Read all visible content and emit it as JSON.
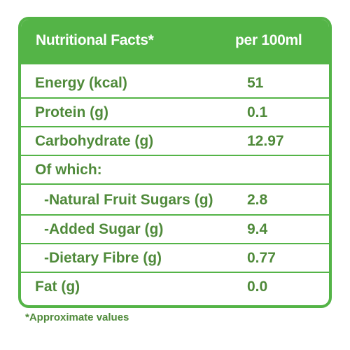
{
  "header": {
    "title": "Nutritional Facts*",
    "per": "per 100ml"
  },
  "rows": [
    {
      "label": "Energy (kcal)",
      "value": "51"
    },
    {
      "label": "Protein (g)",
      "value": "0.1"
    },
    {
      "label": "Carbohydrate (g)",
      "value": "12.97"
    },
    {
      "label": "Of which:",
      "value": ""
    },
    {
      "label": "-Natural Fruit Sugars (g)",
      "value": "2.8"
    },
    {
      "label": "-Added Sugar (g)",
      "value": "9.4"
    },
    {
      "label": "-Dietary Fibre (g)",
      "value": "0.77"
    },
    {
      "label": "Fat (g)",
      "value": "0.0"
    }
  ],
  "footnote": "*Approximate values",
  "colors": {
    "accent_green": "#54b447",
    "text_green": "#4f8a3a",
    "background": "#ffffff"
  }
}
